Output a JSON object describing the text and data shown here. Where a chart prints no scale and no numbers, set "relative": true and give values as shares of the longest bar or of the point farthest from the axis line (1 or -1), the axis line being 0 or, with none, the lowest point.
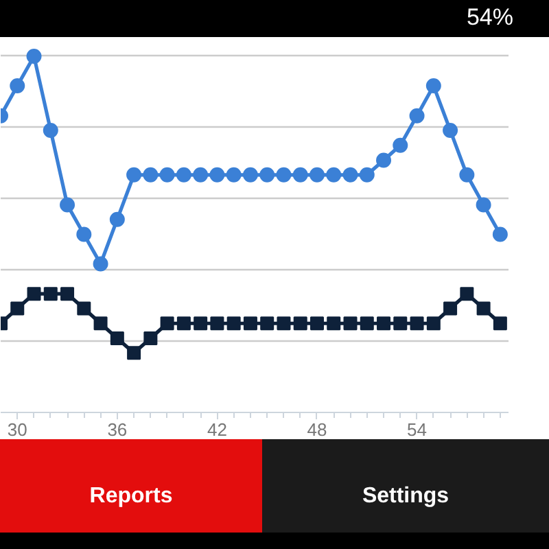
{
  "chart_data": {
    "type": "line",
    "relative": true,
    "x": [
      29,
      30,
      31,
      32,
      33,
      34,
      35,
      36,
      37,
      38,
      39,
      40,
      41,
      42,
      43,
      44,
      45,
      46,
      47,
      48,
      49,
      50,
      51,
      52,
      53,
      54,
      55,
      56,
      57,
      58,
      59
    ],
    "xlim": [
      29,
      59.5
    ],
    "xticks": [
      30,
      {
        "value": 31,
        "label": null
      },
      {
        "value": 32,
        "label": null
      },
      {
        "value": 33,
        "label": null
      },
      {
        "value": 34,
        "label": null
      },
      {
        "value": 35,
        "label": null
      },
      36,
      {
        "value": 37,
        "label": null
      },
      {
        "value": 38,
        "label": null
      },
      {
        "value": 39,
        "label": null
      },
      {
        "value": 40,
        "label": null
      },
      {
        "value": 41,
        "label": null
      },
      42,
      {
        "value": 43,
        "label": null
      },
      {
        "value": 44,
        "label": null
      },
      {
        "value": 45,
        "label": null
      },
      {
        "value": 46,
        "label": null
      },
      {
        "value": 47,
        "label": null
      },
      48,
      {
        "value": 49,
        "label": null
      },
      {
        "value": 50,
        "label": null
      },
      {
        "value": 51,
        "label": null
      },
      {
        "value": 52,
        "label": null
      },
      {
        "value": 53,
        "label": null
      },
      54,
      {
        "value": 55,
        "label": null
      },
      {
        "value": 56,
        "label": null
      },
      {
        "value": 57,
        "label": null
      },
      {
        "value": 58,
        "label": null
      },
      {
        "value": 59,
        "label": null
      }
    ],
    "grid": "y",
    "tick_labels": "x",
    "series": [
      {
        "color": "#3b80d6",
        "marker": "circle",
        "values": [
          0.833,
          0.917,
          1,
          0.792,
          0.583,
          0.5,
          0.417,
          0.542,
          0.667,
          0.667,
          0.667,
          0.667,
          0.667,
          0.667,
          0.667,
          0.667,
          0.667,
          0.667,
          0.667,
          0.667,
          0.667,
          0.667,
          0.667,
          0.708,
          0.75,
          0.833,
          0.917,
          0.792,
          0.667,
          0.583,
          0.5
        ]
      },
      {
        "color": "#0e213a",
        "marker": "square",
        "values": [
          0.25,
          0.292,
          0.333,
          0.333,
          0.333,
          0.292,
          0.25,
          0.208,
          0.167,
          0.208,
          0.25,
          0.25,
          0.25,
          0.25,
          0.25,
          0.25,
          0.25,
          0.25,
          0.25,
          0.25,
          0.25,
          0.25,
          0.25,
          0.25,
          0.25,
          0.25,
          0.25,
          0.292,
          0.333,
          0.292,
          0.25
        ]
      }
    ],
    "annotations": [
      "54%",
      "Reports",
      "Settings"
    ]
  }
}
